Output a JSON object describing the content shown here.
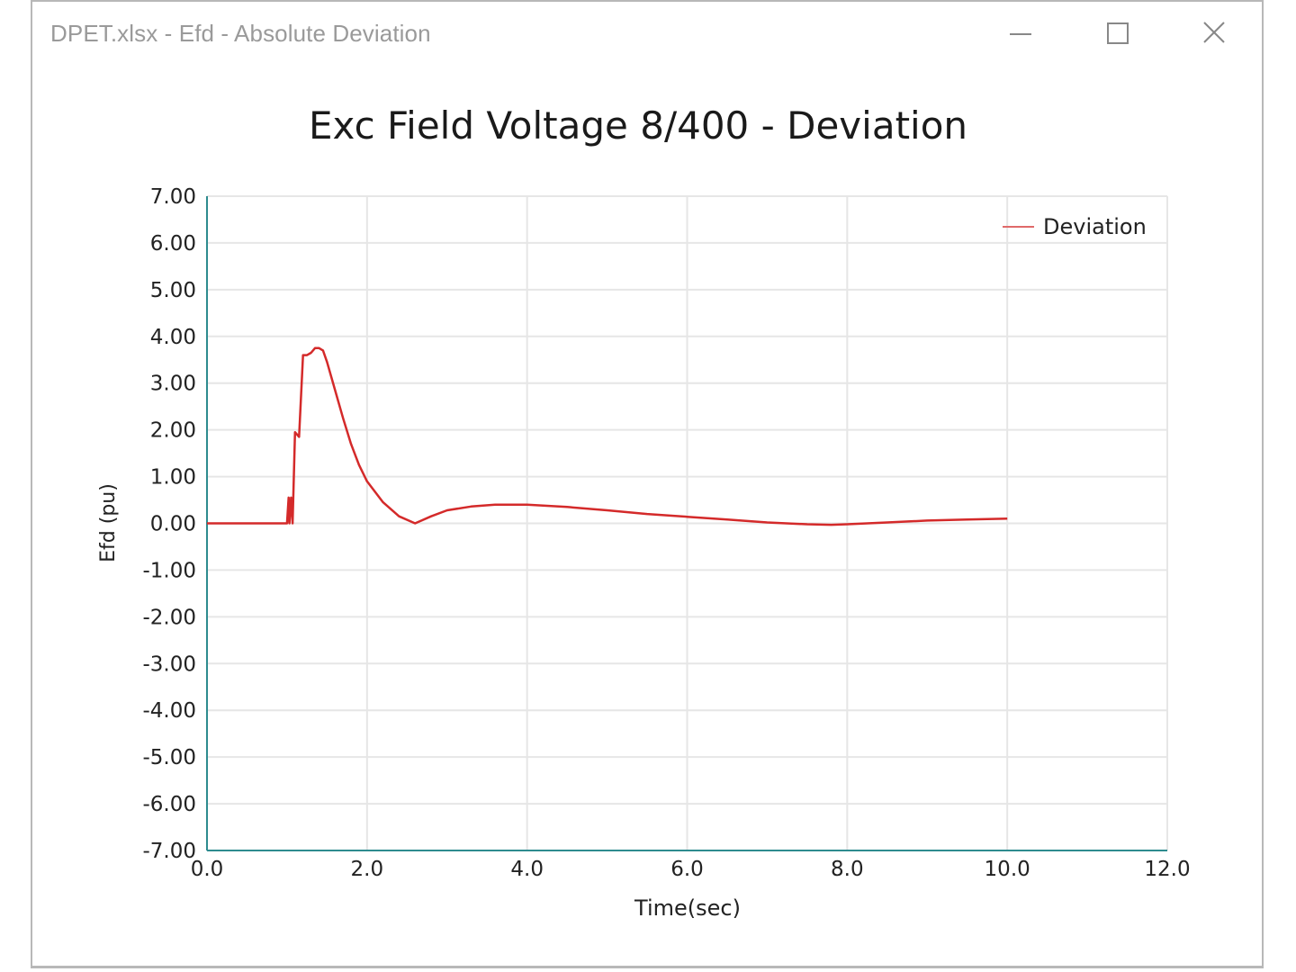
{
  "window": {
    "title": "DPET.xlsx - Efd - Absolute Deviation",
    "controls": {
      "minimize_icon": "minimize-icon",
      "maximize_icon": "maximize-icon",
      "close_icon": "close-icon"
    }
  },
  "chart": {
    "title": "Exc Field Voltage 8/400 - Deviation",
    "xlabel": "Time(sec)",
    "ylabel": "Efd (pu)",
    "legend_label": "Deviation",
    "y_ticks": [
      "7.00",
      "6.00",
      "5.00",
      "4.00",
      "3.00",
      "2.00",
      "1.00",
      "0.00",
      "-1.00",
      "-2.00",
      "-3.00",
      "-4.00",
      "-5.00",
      "-6.00",
      "-7.00"
    ],
    "x_ticks": [
      "0.0",
      "2.0",
      "4.0",
      "6.0",
      "8.0",
      "10.0",
      "12.0"
    ],
    "colors": {
      "series": "#d42a2a",
      "axis": "#2e8b8f",
      "grid": "#e6e6e6",
      "text": "#222222"
    }
  },
  "chart_data": {
    "type": "line",
    "title": "Exc Field Voltage 8/400 - Deviation",
    "xlabel": "Time(sec)",
    "ylabel": "Efd (pu)",
    "xlim": [
      0,
      12
    ],
    "ylim": [
      -7,
      7
    ],
    "grid": true,
    "legend_position": "top-right",
    "series": [
      {
        "name": "Deviation",
        "color": "#d42a2a",
        "x": [
          0.0,
          1.0,
          1.02,
          1.03,
          1.05,
          1.07,
          1.1,
          1.15,
          1.2,
          1.25,
          1.3,
          1.35,
          1.4,
          1.45,
          1.5,
          1.6,
          1.7,
          1.8,
          1.9,
          2.0,
          2.2,
          2.4,
          2.6,
          2.8,
          3.0,
          3.3,
          3.6,
          4.0,
          4.5,
          5.0,
          5.5,
          6.0,
          6.5,
          7.0,
          7.5,
          7.8,
          8.0,
          8.5,
          9.0,
          9.5,
          10.0
        ],
        "y": [
          0.0,
          0.0,
          0.55,
          0.0,
          0.55,
          0.0,
          1.95,
          1.85,
          3.6,
          3.6,
          3.65,
          3.75,
          3.75,
          3.7,
          3.45,
          2.85,
          2.25,
          1.7,
          1.25,
          0.9,
          0.45,
          0.15,
          0.0,
          0.15,
          0.28,
          0.36,
          0.4,
          0.4,
          0.35,
          0.28,
          0.2,
          0.14,
          0.08,
          0.02,
          -0.02,
          -0.03,
          -0.02,
          0.02,
          0.06,
          0.08,
          0.1
        ]
      }
    ]
  }
}
